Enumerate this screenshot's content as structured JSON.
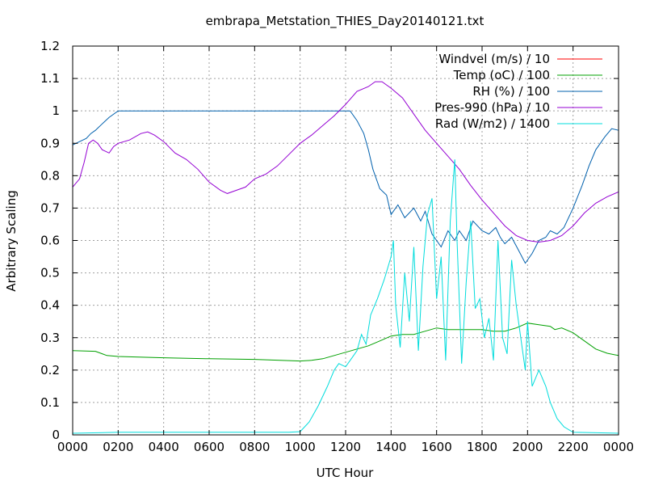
{
  "chart_data": {
    "type": "line",
    "title": "embrapa_Metstation_THIES_Day20140121.txt",
    "xlabel": "UTC Hour",
    "ylabel": "Arbitrary Scaling",
    "xlim": [
      0,
      24
    ],
    "ylim": [
      0,
      1.2
    ],
    "grid": true,
    "legend": "top-right",
    "x_ticks": [
      {
        "value": 0,
        "label": "0000"
      },
      {
        "value": 2,
        "label": "0200"
      },
      {
        "value": 4,
        "label": "0400"
      },
      {
        "value": 6,
        "label": "0600"
      },
      {
        "value": 8,
        "label": "0800"
      },
      {
        "value": 10,
        "label": "1000"
      },
      {
        "value": 12,
        "label": "1200"
      },
      {
        "value": 14,
        "label": "1400"
      },
      {
        "value": 16,
        "label": "1600"
      },
      {
        "value": 18,
        "label": "1800"
      },
      {
        "value": 20,
        "label": "2000"
      },
      {
        "value": 22,
        "label": "2200"
      },
      {
        "value": 24,
        "label": "0000"
      }
    ],
    "y_ticks": [
      {
        "value": 0,
        "label": "0"
      },
      {
        "value": 0.1,
        "label": "0.1"
      },
      {
        "value": 0.2,
        "label": "0.2"
      },
      {
        "value": 0.3,
        "label": "0.3"
      },
      {
        "value": 0.4,
        "label": "0.4"
      },
      {
        "value": 0.5,
        "label": "0.5"
      },
      {
        "value": 0.6,
        "label": "0.6"
      },
      {
        "value": 0.7,
        "label": "0.7"
      },
      {
        "value": 0.8,
        "label": "0.8"
      },
      {
        "value": 0.9,
        "label": "0.9"
      },
      {
        "value": 1.0,
        "label": "1"
      },
      {
        "value": 1.1,
        "label": "1.1"
      },
      {
        "value": 1.2,
        "label": "1.2"
      }
    ],
    "series": [
      {
        "name": "Windvel (m/s) / 10",
        "color": "#ff0000",
        "points": []
      },
      {
        "name": "Temp (oC) / 100",
        "color": "#00a000",
        "points": [
          [
            0,
            0.26
          ],
          [
            1,
            0.258
          ],
          [
            1.5,
            0.245
          ],
          [
            2,
            0.242
          ],
          [
            4,
            0.238
          ],
          [
            6,
            0.235
          ],
          [
            8,
            0.233
          ],
          [
            10,
            0.228
          ],
          [
            10.5,
            0.23
          ],
          [
            11,
            0.235
          ],
          [
            11.5,
            0.245
          ],
          [
            12,
            0.255
          ],
          [
            12.5,
            0.265
          ],
          [
            13,
            0.275
          ],
          [
            13.5,
            0.29
          ],
          [
            14,
            0.305
          ],
          [
            14.5,
            0.31
          ],
          [
            15,
            0.31
          ],
          [
            15.5,
            0.32
          ],
          [
            16,
            0.33
          ],
          [
            16.5,
            0.325
          ],
          [
            17,
            0.325
          ],
          [
            18,
            0.325
          ],
          [
            18.5,
            0.32
          ],
          [
            19,
            0.32
          ],
          [
            19.5,
            0.33
          ],
          [
            20,
            0.345
          ],
          [
            20.5,
            0.34
          ],
          [
            21,
            0.335
          ],
          [
            21.2,
            0.325
          ],
          [
            21.5,
            0.33
          ],
          [
            22,
            0.315
          ],
          [
            22.5,
            0.29
          ],
          [
            23,
            0.265
          ],
          [
            23.5,
            0.252
          ],
          [
            24,
            0.245
          ]
        ]
      },
      {
        "name": "RH (%) / 100",
        "color": "#0060ad",
        "points": [
          [
            0,
            0.895
          ],
          [
            0.3,
            0.905
          ],
          [
            0.6,
            0.915
          ],
          [
            0.8,
            0.93
          ],
          [
            1.0,
            0.94
          ],
          [
            1.3,
            0.96
          ],
          [
            1.6,
            0.98
          ],
          [
            2,
            1.0
          ],
          [
            4,
            1.0
          ],
          [
            8,
            1.0
          ],
          [
            12,
            1.0
          ],
          [
            12.2,
            1.0
          ],
          [
            12.5,
            0.97
          ],
          [
            12.8,
            0.93
          ],
          [
            13.0,
            0.88
          ],
          [
            13.2,
            0.82
          ],
          [
            13.5,
            0.76
          ],
          [
            13.8,
            0.74
          ],
          [
            14.0,
            0.68
          ],
          [
            14.3,
            0.71
          ],
          [
            14.6,
            0.67
          ],
          [
            15.0,
            0.7
          ],
          [
            15.3,
            0.66
          ],
          [
            15.5,
            0.69
          ],
          [
            15.8,
            0.62
          ],
          [
            16.0,
            0.6
          ],
          [
            16.2,
            0.58
          ],
          [
            16.5,
            0.63
          ],
          [
            16.8,
            0.6
          ],
          [
            17.0,
            0.63
          ],
          [
            17.3,
            0.6
          ],
          [
            17.6,
            0.66
          ],
          [
            18.0,
            0.63
          ],
          [
            18.3,
            0.62
          ],
          [
            18.6,
            0.64
          ],
          [
            18.8,
            0.61
          ],
          [
            19.0,
            0.59
          ],
          [
            19.3,
            0.61
          ],
          [
            19.6,
            0.57
          ],
          [
            19.9,
            0.53
          ],
          [
            20.2,
            0.56
          ],
          [
            20.5,
            0.6
          ],
          [
            20.8,
            0.61
          ],
          [
            21.0,
            0.63
          ],
          [
            21.3,
            0.62
          ],
          [
            21.6,
            0.64
          ],
          [
            22.0,
            0.7
          ],
          [
            22.4,
            0.77
          ],
          [
            22.7,
            0.83
          ],
          [
            23.0,
            0.88
          ],
          [
            23.4,
            0.92
          ],
          [
            23.7,
            0.945
          ],
          [
            24,
            0.94
          ]
        ]
      },
      {
        "name": "Pres-990 (hPa) / 10",
        "color": "#9400d3",
        "points": [
          [
            0,
            0.765
          ],
          [
            0.3,
            0.79
          ],
          [
            0.5,
            0.84
          ],
          [
            0.7,
            0.9
          ],
          [
            0.9,
            0.91
          ],
          [
            1.1,
            0.9
          ],
          [
            1.3,
            0.88
          ],
          [
            1.6,
            0.87
          ],
          [
            1.8,
            0.89
          ],
          [
            2.0,
            0.9
          ],
          [
            2.5,
            0.91
          ],
          [
            3.0,
            0.93
          ],
          [
            3.3,
            0.935
          ],
          [
            3.6,
            0.925
          ],
          [
            4.0,
            0.905
          ],
          [
            4.5,
            0.87
          ],
          [
            5.0,
            0.85
          ],
          [
            5.5,
            0.82
          ],
          [
            6.0,
            0.78
          ],
          [
            6.5,
            0.755
          ],
          [
            6.8,
            0.745
          ],
          [
            7.2,
            0.755
          ],
          [
            7.6,
            0.765
          ],
          [
            8.0,
            0.79
          ],
          [
            8.5,
            0.805
          ],
          [
            9.0,
            0.83
          ],
          [
            9.5,
            0.865
          ],
          [
            10.0,
            0.9
          ],
          [
            10.5,
            0.925
          ],
          [
            11.0,
            0.955
          ],
          [
            11.5,
            0.985
          ],
          [
            12.0,
            1.02
          ],
          [
            12.5,
            1.06
          ],
          [
            13.0,
            1.075
          ],
          [
            13.3,
            1.09
          ],
          [
            13.6,
            1.09
          ],
          [
            14.0,
            1.07
          ],
          [
            14.5,
            1.04
          ],
          [
            15.0,
            0.99
          ],
          [
            15.5,
            0.94
          ],
          [
            16.0,
            0.9
          ],
          [
            16.5,
            0.86
          ],
          [
            17.0,
            0.82
          ],
          [
            17.5,
            0.77
          ],
          [
            18.0,
            0.725
          ],
          [
            18.5,
            0.685
          ],
          [
            19.0,
            0.645
          ],
          [
            19.5,
            0.615
          ],
          [
            20.0,
            0.6
          ],
          [
            20.5,
            0.595
          ],
          [
            21.0,
            0.6
          ],
          [
            21.5,
            0.615
          ],
          [
            22.0,
            0.645
          ],
          [
            22.5,
            0.685
          ],
          [
            23.0,
            0.715
          ],
          [
            23.5,
            0.735
          ],
          [
            24,
            0.75
          ]
        ]
      },
      {
        "name": "Rad (W/m2) / 1400",
        "color": "#00dcdc",
        "points": [
          [
            0,
            0.005
          ],
          [
            2,
            0.008
          ],
          [
            6,
            0.008
          ],
          [
            9.5,
            0.008
          ],
          [
            10.0,
            0.01
          ],
          [
            10.4,
            0.04
          ],
          [
            10.8,
            0.09
          ],
          [
            11.2,
            0.15
          ],
          [
            11.5,
            0.2
          ],
          [
            11.7,
            0.22
          ],
          [
            12.0,
            0.21
          ],
          [
            12.3,
            0.24
          ],
          [
            12.5,
            0.26
          ],
          [
            12.7,
            0.31
          ],
          [
            12.9,
            0.28
          ],
          [
            13.1,
            0.37
          ],
          [
            13.4,
            0.42
          ],
          [
            13.7,
            0.48
          ],
          [
            14.0,
            0.55
          ],
          [
            14.1,
            0.6
          ],
          [
            14.2,
            0.4
          ],
          [
            14.4,
            0.27
          ],
          [
            14.6,
            0.5
          ],
          [
            14.8,
            0.35
          ],
          [
            15.0,
            0.58
          ],
          [
            15.2,
            0.26
          ],
          [
            15.4,
            0.52
          ],
          [
            15.6,
            0.68
          ],
          [
            15.8,
            0.73
          ],
          [
            16.0,
            0.42
          ],
          [
            16.2,
            0.55
          ],
          [
            16.4,
            0.23
          ],
          [
            16.6,
            0.66
          ],
          [
            16.8,
            0.85
          ],
          [
            16.9,
            0.6
          ],
          [
            17.1,
            0.22
          ],
          [
            17.3,
            0.47
          ],
          [
            17.5,
            0.66
          ],
          [
            17.7,
            0.39
          ],
          [
            17.9,
            0.42
          ],
          [
            18.1,
            0.3
          ],
          [
            18.3,
            0.36
          ],
          [
            18.5,
            0.23
          ],
          [
            18.7,
            0.6
          ],
          [
            18.9,
            0.3
          ],
          [
            19.1,
            0.25
          ],
          [
            19.3,
            0.54
          ],
          [
            19.5,
            0.4
          ],
          [
            19.7,
            0.3
          ],
          [
            19.9,
            0.2
          ],
          [
            20.0,
            0.35
          ],
          [
            20.2,
            0.15
          ],
          [
            20.5,
            0.2
          ],
          [
            20.8,
            0.15
          ],
          [
            21.0,
            0.1
          ],
          [
            21.3,
            0.05
          ],
          [
            21.6,
            0.025
          ],
          [
            22.0,
            0.008
          ],
          [
            24,
            0.005
          ]
        ]
      }
    ]
  }
}
